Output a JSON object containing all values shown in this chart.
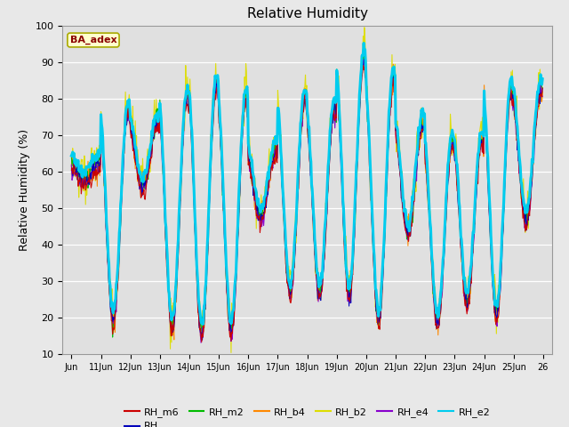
{
  "title": "Relative Humidity",
  "ylabel": "Relative Humidity (%)",
  "ylim": [
    10,
    100
  ],
  "yticks": [
    10,
    20,
    30,
    40,
    50,
    60,
    70,
    80,
    90,
    100
  ],
  "series_colors": {
    "RH_m6": "#cc0000",
    "RH": "#0000bb",
    "RH_m2": "#00bb00",
    "RH_b4": "#ff8800",
    "RH_b2": "#dddd00",
    "RH_e4": "#8800cc",
    "RH_e2": "#00ccee"
  },
  "series_order": [
    "RH_b2",
    "RH_b4",
    "RH_m2",
    "RH_e4",
    "RH",
    "RH_m6",
    "RH_e2"
  ],
  "legend_order": [
    "RH_m6",
    "RH",
    "RH_m2",
    "RH_b4",
    "RH_b2",
    "RH_e4",
    "RH_e2"
  ],
  "annotation_text": "BA_adex",
  "annotation_color": "#8b0000",
  "annotation_bg": "#ffffcc",
  "annotation_border": "#aaaa00",
  "fig_facecolor": "#e8e8e8",
  "plot_facecolor": "#e0e0e0",
  "x_tick_labels": [
    "Jun",
    "11Jun",
    "12Jun",
    "13Jun",
    "14Jun",
    "15Jun",
    "16Jun",
    "17Jun",
    "18Jun",
    "19Jun",
    "20Jun",
    "21Jun",
    "22Jun",
    "23Jun",
    "24Jun",
    "25Jun",
    "26"
  ],
  "peak_values": [
    62,
    76,
    73,
    80,
    84,
    80,
    65,
    80,
    77,
    90,
    85,
    73,
    68,
    68,
    82,
    82
  ],
  "trough_values": [
    57,
    19,
    55,
    17,
    15,
    16,
    47,
    26,
    26,
    26,
    19,
    43,
    18,
    24,
    20,
    46
  ],
  "n_days": 16,
  "points_per_day": 48
}
